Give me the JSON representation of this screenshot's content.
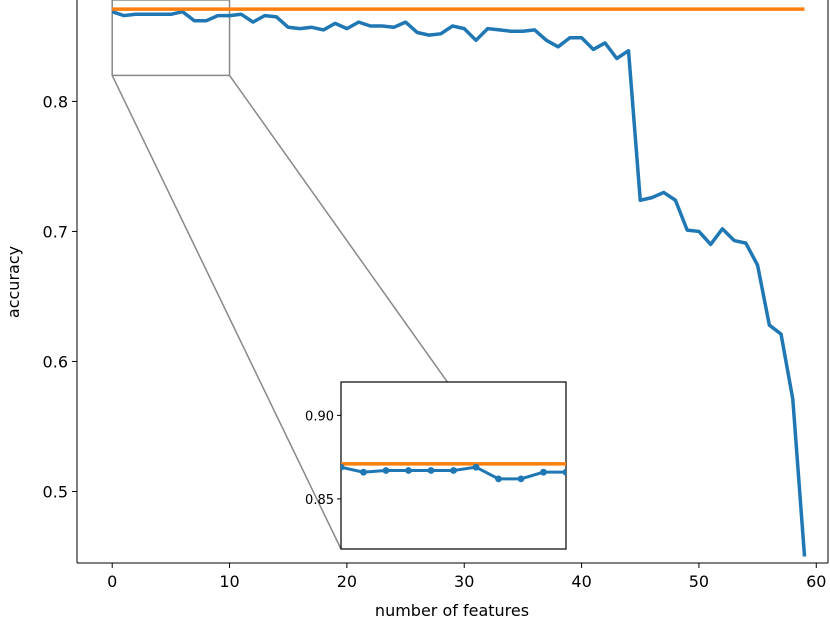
{
  "chart_data": {
    "type": "line",
    "xlabel": "number of features",
    "ylabel": "accuracy",
    "xlim": [
      -3,
      61
    ],
    "ylim": [
      0.445,
      0.878
    ],
    "x_ticks": [
      0,
      10,
      20,
      30,
      40,
      50,
      60
    ],
    "y_ticks": [
      0.5,
      0.6,
      0.7,
      0.8
    ],
    "x_tick_labels": [
      "0",
      "10",
      "20",
      "30",
      "40",
      "50",
      "60"
    ],
    "y_tick_labels": [
      "0.5",
      "0.6",
      "0.7",
      "0.8"
    ],
    "grid": false,
    "series": [
      {
        "color": "#1f77b4",
        "x": [
          0,
          1,
          2,
          3,
          4,
          5,
          6,
          7,
          8,
          9,
          10,
          11,
          12,
          13,
          14,
          15,
          16,
          17,
          18,
          19,
          20,
          21,
          22,
          23,
          24,
          25,
          26,
          27,
          28,
          29,
          30,
          31,
          32,
          33,
          34,
          35,
          36,
          37,
          38,
          39,
          40,
          41,
          42,
          43,
          44,
          45,
          46,
          47,
          48,
          49,
          50,
          51,
          52,
          53,
          54,
          55,
          56,
          57,
          58,
          59
        ],
        "values": [
          0.869,
          0.866,
          0.867,
          0.867,
          0.867,
          0.867,
          0.869,
          0.862,
          0.862,
          0.866,
          0.866,
          0.867,
          0.861,
          0.866,
          0.865,
          0.857,
          0.856,
          0.857,
          0.855,
          0.86,
          0.856,
          0.861,
          0.858,
          0.858,
          0.857,
          0.861,
          0.853,
          0.851,
          0.852,
          0.858,
          0.856,
          0.847,
          0.856,
          0.855,
          0.854,
          0.854,
          0.855,
          0.847,
          0.842,
          0.849,
          0.849,
          0.84,
          0.845,
          0.833,
          0.839,
          0.724,
          0.726,
          0.73,
          0.724,
          0.701,
          0.7,
          0.69,
          0.702,
          0.693,
          0.691,
          0.674,
          0.628,
          0.621,
          0.571,
          0.45
        ]
      },
      {
        "color": "#ff7f0e",
        "x": [
          0,
          59
        ],
        "values": [
          0.871,
          0.871
        ]
      }
    ],
    "inset": {
      "xlim": [
        0,
        10
      ],
      "ylim": [
        0.82,
        0.92
      ],
      "y_ticks": [
        0.85,
        0.9
      ],
      "y_tick_labels": [
        "0.85",
        "0.90"
      ],
      "marker_series_color": "#1f77b4",
      "line_series_color": "#ff7f0e",
      "zoom_connector_color": "#888888"
    }
  }
}
